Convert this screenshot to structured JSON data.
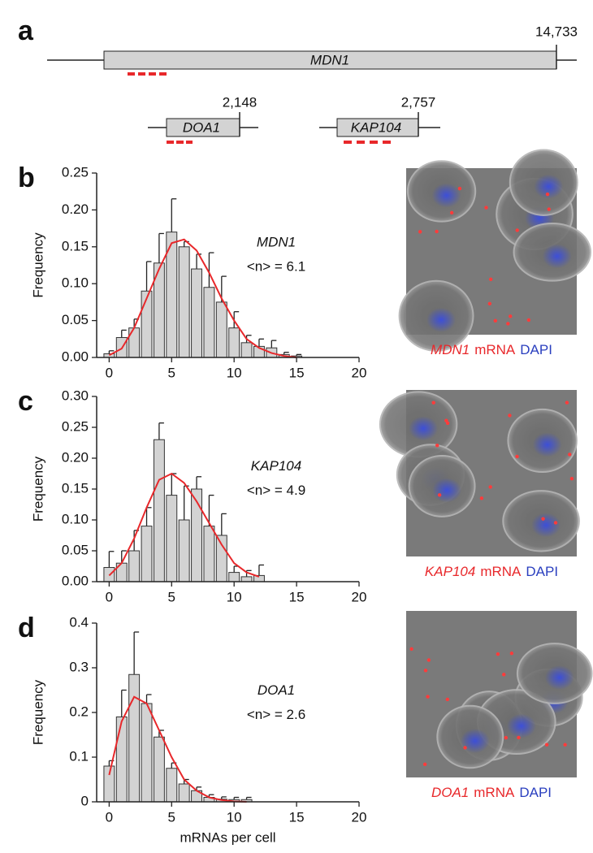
{
  "gene_diagram": {
    "panel": "a",
    "genes": [
      {
        "name": "MDN1",
        "length": "14,733"
      },
      {
        "name": "DOA1",
        "length": "2,148"
      },
      {
        "name": "KAP104",
        "length": "2,757"
      }
    ]
  },
  "chart_data": [
    {
      "type": "bar",
      "panel": "b",
      "ylabel": "Frequency",
      "color": "#d3d3d3",
      "gene": "MDN1",
      "mean_label": "<n> = 6.1",
      "x": [
        0,
        1,
        2,
        3,
        4,
        5,
        6,
        7,
        8,
        9,
        10,
        11,
        12,
        13,
        14,
        15
      ],
      "values": [
        0.005,
        0.027,
        0.04,
        0.09,
        0.128,
        0.17,
        0.15,
        0.12,
        0.095,
        0.075,
        0.04,
        0.02,
        0.015,
        0.013,
        0.004,
        0.002
      ],
      "errors": [
        0.004,
        0.01,
        0.012,
        0.04,
        0.04,
        0.045,
        0.007,
        0.02,
        0.047,
        0.035,
        0.022,
        0.01,
        0.01,
        0.01,
        0.003,
        0.002
      ],
      "fit": {
        "color": "#e8282b",
        "x": [
          0,
          1,
          2,
          3,
          4,
          5,
          6,
          7,
          8,
          9,
          10,
          11,
          12,
          13,
          14,
          15
        ],
        "values": [
          0.003,
          0.012,
          0.04,
          0.08,
          0.12,
          0.155,
          0.16,
          0.145,
          0.115,
          0.08,
          0.05,
          0.025,
          0.013,
          0.006,
          0.002,
          0.0
        ]
      },
      "xlim": [
        -1,
        20
      ],
      "xticks": [
        0,
        5,
        10,
        15,
        20
      ],
      "ylim": [
        0,
        0.25
      ],
      "yticks": [
        {
          "value": 0,
          "label": "0.00"
        },
        0.05,
        {
          "value": 0.1,
          "label": "0.10"
        },
        0.15,
        {
          "value": 0.2,
          "label": "0.20"
        },
        0.25
      ],
      "image_caption": {
        "gene": "MDN1",
        "mrna": "mRNA",
        "stain": "DAPI"
      }
    },
    {
      "type": "bar",
      "panel": "c",
      "ylabel": "Frequency",
      "color": "#d3d3d3",
      "gene": "KAP104",
      "mean_label": "<n> = 4.9",
      "x": [
        0,
        1,
        2,
        3,
        4,
        5,
        6,
        7,
        8,
        9,
        10,
        11,
        12
      ],
      "values": [
        0.023,
        0.03,
        0.05,
        0.09,
        0.23,
        0.14,
        0.1,
        0.15,
        0.09,
        0.075,
        0.015,
        0.008,
        0.01
      ],
      "errors": [
        0.026,
        0.02,
        0.033,
        0.03,
        0.027,
        0.035,
        0.055,
        0.02,
        0.05,
        0.035,
        0.01,
        0.01,
        0.017
      ],
      "fit": {
        "color": "#e8282b",
        "x": [
          0,
          1,
          2,
          3,
          4,
          5,
          6,
          7,
          8,
          9,
          10,
          11,
          12
        ],
        "values": [
          0.01,
          0.03,
          0.07,
          0.12,
          0.165,
          0.175,
          0.16,
          0.13,
          0.095,
          0.06,
          0.03,
          0.015,
          0.008
        ]
      },
      "xlim": [
        -1,
        20
      ],
      "xticks": [
        0,
        5,
        10,
        15,
        20
      ],
      "ylim": [
        0,
        0.3
      ],
      "yticks": [
        {
          "value": 0,
          "label": "0.00"
        },
        0.05,
        {
          "value": 0.1,
          "label": "0.10"
        },
        0.15,
        {
          "value": 0.2,
          "label": "0.20"
        },
        0.25,
        {
          "value": 0.3,
          "label": "0.30"
        }
      ],
      "image_caption": {
        "gene": "KAP104",
        "mrna": "mRNA",
        "stain": "DAPI"
      }
    },
    {
      "type": "bar",
      "panel": "d",
      "ylabel": "Frequency",
      "xlabel": "mRNAs per cell",
      "color": "#d3d3d3",
      "gene": "DOA1",
      "mean_label": "<n> = 2.6",
      "x": [
        0,
        1,
        2,
        3,
        4,
        5,
        6,
        7,
        8,
        9,
        10,
        11
      ],
      "values": [
        0.08,
        0.19,
        0.285,
        0.22,
        0.145,
        0.075,
        0.04,
        0.025,
        0.01,
        0.006,
        0.005,
        0.005
      ],
      "errors": [
        0.012,
        0.06,
        0.095,
        0.02,
        0.015,
        0.012,
        0.01,
        0.008,
        0.006,
        0.005,
        0.005,
        0.005
      ],
      "fit": {
        "color": "#e8282b",
        "x": [
          0,
          1,
          2,
          3,
          4,
          5,
          6,
          7,
          8,
          9,
          10,
          11
        ],
        "values": [
          0.06,
          0.18,
          0.235,
          0.22,
          0.16,
          0.1,
          0.05,
          0.025,
          0.01,
          0.004,
          0.001,
          0.0
        ]
      },
      "xlim": [
        -1,
        20
      ],
      "xticks": [
        0,
        5,
        10,
        15,
        20
      ],
      "ylim": [
        0,
        0.4
      ],
      "yticks": [
        0,
        0.1,
        0.2,
        0.3,
        0.4
      ],
      "image_caption": {
        "gene": "DOA1",
        "mrna": "mRNA",
        "stain": "DAPI"
      }
    }
  ]
}
